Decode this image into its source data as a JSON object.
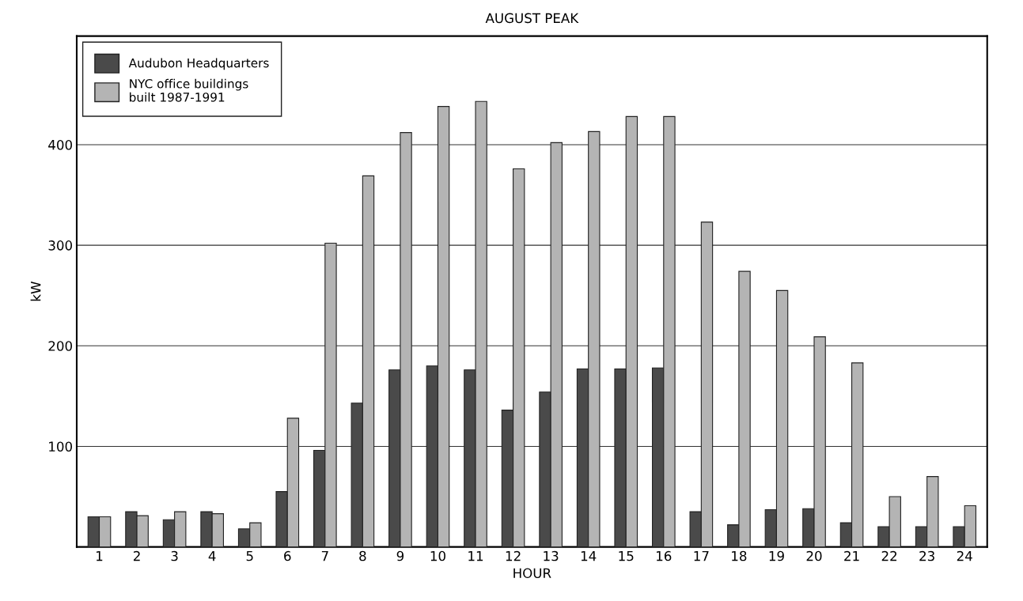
{
  "chart_data": {
    "type": "bar",
    "title": "AUGUST PEAK",
    "xlabel": "HOUR",
    "ylabel": "kW",
    "categories": [
      "1",
      "2",
      "3",
      "4",
      "5",
      "6",
      "7",
      "8",
      "9",
      "10",
      "11",
      "12",
      "13",
      "14",
      "15",
      "16",
      "17",
      "18",
      "19",
      "20",
      "21",
      "22",
      "23",
      "24"
    ],
    "series": [
      {
        "name": "Audubon Headquarters",
        "color": "#4a4a4a",
        "values": [
          30,
          35,
          27,
          35,
          18,
          55,
          96,
          143,
          176,
          180,
          176,
          136,
          154,
          177,
          177,
          178,
          35,
          22,
          37,
          38,
          24,
          20,
          20,
          20
        ]
      },
      {
        "name": "NYC office buildings\nbuilt 1987-1991",
        "color": "#b4b4b4",
        "values": [
          30,
          31,
          35,
          33,
          24,
          128,
          302,
          369,
          412,
          438,
          443,
          376,
          402,
          413,
          428,
          428,
          323,
          274,
          255,
          209,
          183,
          50,
          70,
          41
        ]
      }
    ],
    "ylim": [
      0,
      508
    ],
    "yticks": [
      100,
      200,
      300,
      400
    ],
    "grid": "y",
    "legend": "top left"
  }
}
